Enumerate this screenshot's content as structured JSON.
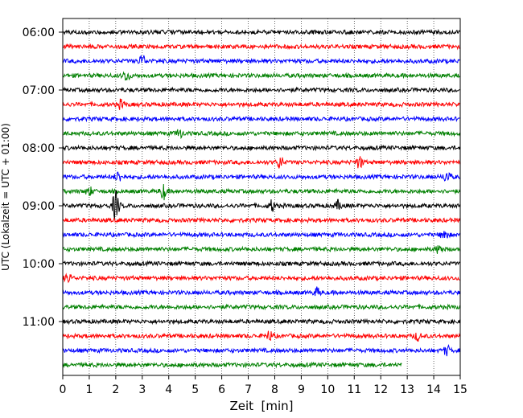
{
  "chart_data": {
    "type": "line",
    "subtype": "helicorder",
    "title": "",
    "xlabel": "Zeit  [min]",
    "ylabel": "UTC (Lokalzeit = UTC + 01:00)",
    "xlim": [
      0,
      15
    ],
    "x_ticks": [
      "0",
      "1",
      "2",
      "3",
      "4",
      "5",
      "6",
      "7",
      "8",
      "9",
      "10",
      "11",
      "12",
      "13",
      "14",
      "15"
    ],
    "vertical_grid": true,
    "grid_style": "dotted",
    "row_minutes": 15,
    "row_count": 24,
    "hour_labels": [
      "06:00",
      "07:00",
      "08:00",
      "09:00",
      "10:00",
      "11:00"
    ],
    "hour_label_rows": [
      0,
      4,
      8,
      12,
      16,
      20
    ],
    "color_cycle": [
      "#000000",
      "#ff0000",
      "#0000ff",
      "#008000"
    ],
    "last_row_end_minute": 12.8,
    "events": [
      {
        "row": 2,
        "minute": 3.0,
        "amplitude": 1.6
      },
      {
        "row": 3,
        "minute": 2.4,
        "amplitude": 1.4
      },
      {
        "row": 5,
        "minute": 2.2,
        "amplitude": 1.1
      },
      {
        "row": 7,
        "minute": 4.4,
        "amplitude": 1.1
      },
      {
        "row": 9,
        "minute": 8.2,
        "amplitude": 1.6
      },
      {
        "row": 9,
        "minute": 11.2,
        "amplitude": 1.5
      },
      {
        "row": 10,
        "minute": 2.1,
        "amplitude": 1.3
      },
      {
        "row": 10,
        "minute": 14.5,
        "amplitude": 1.5
      },
      {
        "row": 11,
        "minute": 1.0,
        "amplitude": 1.1
      },
      {
        "row": 11,
        "minute": 3.8,
        "amplitude": 2.0
      },
      {
        "row": 12,
        "minute": 2.0,
        "amplitude": 4.0
      },
      {
        "row": 12,
        "minute": 7.9,
        "amplitude": 1.4
      },
      {
        "row": 12,
        "minute": 10.4,
        "amplitude": 1.2
      },
      {
        "row": 14,
        "minute": 14.4,
        "amplitude": 1.4
      },
      {
        "row": 15,
        "minute": 14.2,
        "amplitude": 1.1
      },
      {
        "row": 17,
        "minute": 0.2,
        "amplitude": 1.1
      },
      {
        "row": 18,
        "minute": 9.6,
        "amplitude": 1.1
      },
      {
        "row": 21,
        "minute": 7.8,
        "amplitude": 1.2
      },
      {
        "row": 21,
        "minute": 13.4,
        "amplitude": 1.0
      },
      {
        "row": 22,
        "minute": 14.5,
        "amplitude": 1.2
      }
    ]
  }
}
